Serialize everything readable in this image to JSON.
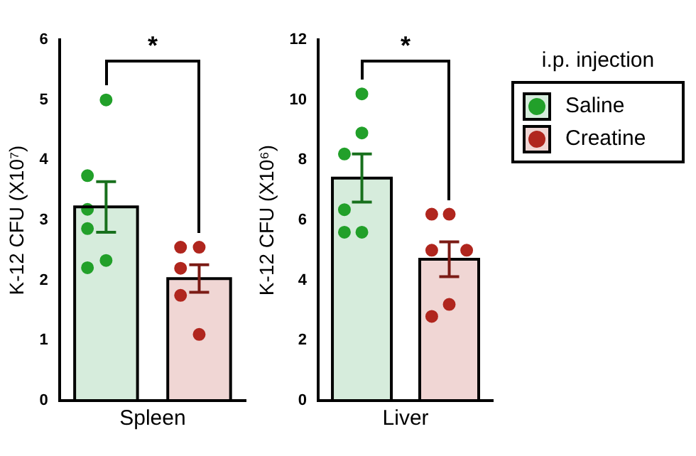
{
  "chart_data": [
    {
      "type": "bar",
      "categories": [
        null,
        null
      ],
      "xlabel": "Spleen",
      "ylabel": "K-12 CFU (X10⁷)",
      "ylim": [
        0,
        6
      ],
      "yticks": [
        0,
        1,
        2,
        3,
        4,
        5,
        6
      ],
      "grid": false,
      "legend": false,
      "tick_labels": "y",
      "annotations": [
        "*"
      ],
      "series": [
        {
          "color": "#d6ecdc",
          "values": [
            3.22,
            null
          ],
          "errors": [
            0.42,
            null
          ]
        },
        {
          "color": "#f0d6d4",
          "values": [
            null,
            2.03
          ],
          "errors": [
            null,
            0.23
          ]
        },
        {
          "type": "scatter",
          "colors": [
            "#22a02a",
            "#b0261e"
          ],
          "values": [
            5.0,
            2.55
          ]
        },
        {
          "type": "scatter",
          "colors": [
            "#22a02a",
            "#b0261e"
          ],
          "values": [
            3.74,
            2.55
          ]
        },
        {
          "type": "scatter",
          "colors": [
            "#22a02a",
            "#b0261e"
          ],
          "values": [
            3.18,
            2.2
          ]
        },
        {
          "type": "scatter",
          "colors": [
            "#22a02a",
            "#b0261e"
          ],
          "values": [
            2.86,
            1.75
          ]
        },
        {
          "type": "scatter",
          "colors": [
            "#22a02a",
            "#b0261e"
          ],
          "values": [
            2.33,
            1.1
          ]
        },
        {
          "type": "scatter",
          "colors": [
            "#22a02a",
            "#b0261e"
          ],
          "values": [
            2.21,
            null
          ]
        }
      ]
    },
    {
      "type": "bar",
      "categories": [
        null,
        null
      ],
      "xlabel": "Liver",
      "ylabel": "K-12 CFU (X10⁶)",
      "ylim": [
        0,
        12
      ],
      "yticks": [
        0,
        2,
        4,
        6,
        8,
        10,
        12
      ],
      "grid": false,
      "legend": "right",
      "legend_title": "i.p. injection",
      "tick_labels": "y",
      "annotations": [
        "*"
      ],
      "series": [
        {
          "name": "Saline",
          "color": "#d6ecdc",
          "values": [
            7.4,
            null
          ],
          "errors": [
            0.8,
            null
          ]
        },
        {
          "name": "Creatine",
          "color": "#f0d6d4",
          "values": [
            null,
            4.7
          ],
          "errors": [
            null,
            0.58
          ]
        },
        {
          "type": "scatter",
          "colors": [
            "#22a02a",
            "#b0261e"
          ],
          "values": [
            10.2,
            6.2
          ]
        },
        {
          "type": "scatter",
          "colors": [
            "#22a02a",
            "#b0261e"
          ],
          "values": [
            8.9,
            6.2
          ]
        },
        {
          "type": "scatter",
          "colors": [
            "#22a02a",
            "#b0261e"
          ],
          "values": [
            8.2,
            5.0
          ]
        },
        {
          "type": "scatter",
          "colors": [
            "#22a02a",
            "#b0261e"
          ],
          "values": [
            6.35,
            5.0
          ]
        },
        {
          "type": "scatter",
          "colors": [
            "#22a02a",
            "#b0261e"
          ],
          "values": [
            5.6,
            3.2
          ]
        },
        {
          "type": "scatter",
          "colors": [
            "#22a02a",
            "#b0261e"
          ],
          "values": [
            5.6,
            2.8
          ]
        }
      ]
    }
  ]
}
